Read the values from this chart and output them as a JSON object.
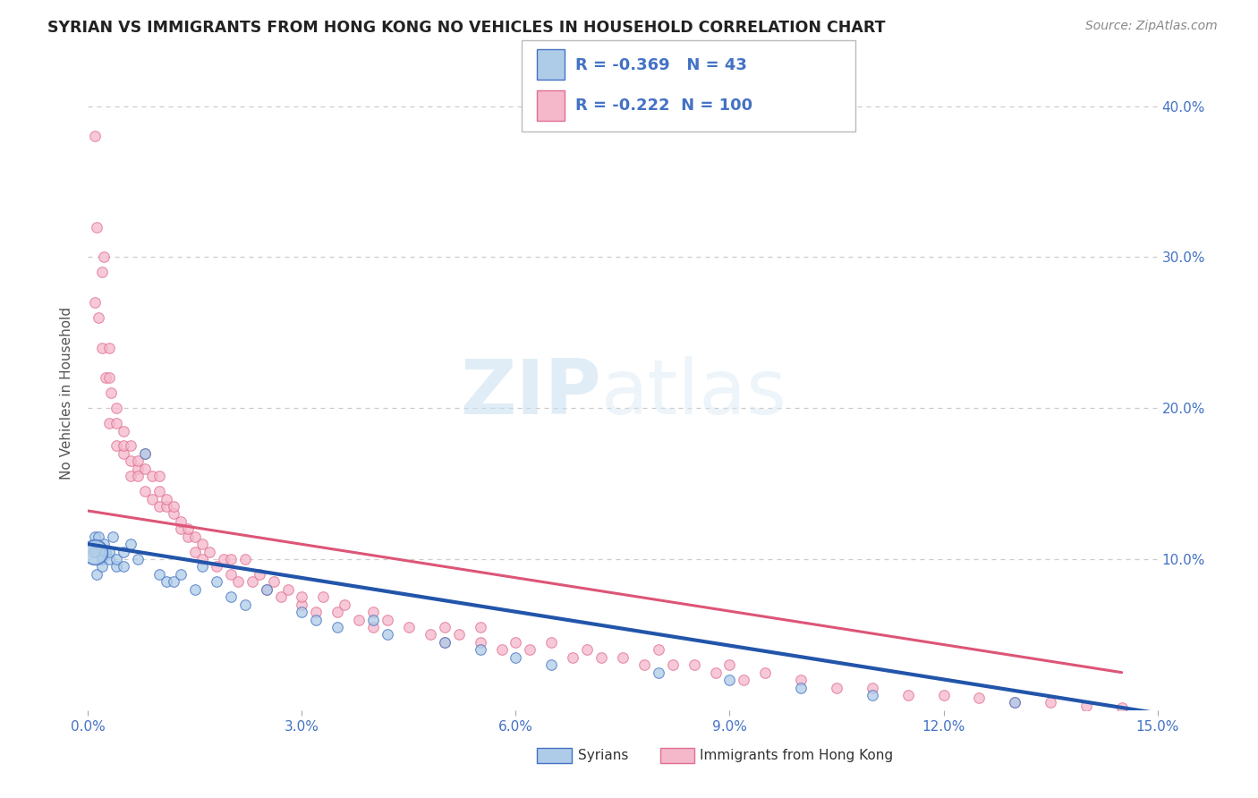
{
  "title": "SYRIAN VS IMMIGRANTS FROM HONG KONG NO VEHICLES IN HOUSEHOLD CORRELATION CHART",
  "source": "Source: ZipAtlas.com",
  "ylabel_label": "No Vehicles in Household",
  "watermark_zip": "ZIP",
  "watermark_atlas": "atlas",
  "legend_entries": [
    {
      "label": "Syrians",
      "R": -0.369,
      "N": 43,
      "color": "#aecce8",
      "edge_color": "#4472c4",
      "line_color": "#2255aa"
    },
    {
      "label": "Immigrants from Hong Kong",
      "R": -0.222,
      "N": 100,
      "color": "#f5b8cb",
      "edge_color": "#e07090",
      "line_color": "#dd5577"
    }
  ],
  "syrians_x": [
    0.0008,
    0.001,
    0.0012,
    0.0015,
    0.002,
    0.002,
    0.0022,
    0.0025,
    0.003,
    0.003,
    0.0035,
    0.004,
    0.004,
    0.005,
    0.005,
    0.006,
    0.007,
    0.008,
    0.01,
    0.011,
    0.012,
    0.013,
    0.015,
    0.016,
    0.018,
    0.02,
    0.022,
    0.025,
    0.03,
    0.032,
    0.035,
    0.04,
    0.042,
    0.05,
    0.055,
    0.06,
    0.065,
    0.08,
    0.09,
    0.1,
    0.11,
    0.13,
    0.14
  ],
  "syrians_y": [
    0.105,
    0.115,
    0.09,
    0.115,
    0.1,
    0.095,
    0.11,
    0.105,
    0.1,
    0.105,
    0.115,
    0.095,
    0.1,
    0.105,
    0.095,
    0.11,
    0.1,
    0.17,
    0.09,
    0.085,
    0.085,
    0.09,
    0.08,
    0.095,
    0.085,
    0.075,
    0.07,
    0.08,
    0.065,
    0.06,
    0.055,
    0.06,
    0.05,
    0.045,
    0.04,
    0.035,
    0.03,
    0.025,
    0.02,
    0.015,
    0.01,
    0.005,
    0.002
  ],
  "hk_x": [
    0.001,
    0.001,
    0.0012,
    0.0015,
    0.002,
    0.002,
    0.0022,
    0.0025,
    0.003,
    0.003,
    0.003,
    0.0032,
    0.004,
    0.004,
    0.004,
    0.005,
    0.005,
    0.005,
    0.006,
    0.006,
    0.006,
    0.007,
    0.007,
    0.007,
    0.008,
    0.008,
    0.008,
    0.009,
    0.009,
    0.01,
    0.01,
    0.01,
    0.011,
    0.011,
    0.012,
    0.012,
    0.013,
    0.013,
    0.014,
    0.014,
    0.015,
    0.015,
    0.016,
    0.016,
    0.017,
    0.018,
    0.019,
    0.02,
    0.02,
    0.021,
    0.022,
    0.023,
    0.024,
    0.025,
    0.026,
    0.027,
    0.028,
    0.03,
    0.03,
    0.032,
    0.033,
    0.035,
    0.036,
    0.038,
    0.04,
    0.04,
    0.042,
    0.045,
    0.048,
    0.05,
    0.05,
    0.052,
    0.055,
    0.055,
    0.058,
    0.06,
    0.062,
    0.065,
    0.068,
    0.07,
    0.072,
    0.075,
    0.078,
    0.08,
    0.082,
    0.085,
    0.088,
    0.09,
    0.092,
    0.095,
    0.1,
    0.105,
    0.11,
    0.115,
    0.12,
    0.125,
    0.13,
    0.135,
    0.14,
    0.145
  ],
  "hk_y": [
    0.38,
    0.27,
    0.32,
    0.26,
    0.29,
    0.24,
    0.3,
    0.22,
    0.22,
    0.24,
    0.19,
    0.21,
    0.175,
    0.19,
    0.2,
    0.17,
    0.175,
    0.185,
    0.155,
    0.165,
    0.175,
    0.16,
    0.155,
    0.165,
    0.145,
    0.16,
    0.17,
    0.14,
    0.155,
    0.135,
    0.145,
    0.155,
    0.135,
    0.14,
    0.13,
    0.135,
    0.12,
    0.125,
    0.115,
    0.12,
    0.115,
    0.105,
    0.11,
    0.1,
    0.105,
    0.095,
    0.1,
    0.09,
    0.1,
    0.085,
    0.1,
    0.085,
    0.09,
    0.08,
    0.085,
    0.075,
    0.08,
    0.07,
    0.075,
    0.065,
    0.075,
    0.065,
    0.07,
    0.06,
    0.065,
    0.055,
    0.06,
    0.055,
    0.05,
    0.055,
    0.045,
    0.05,
    0.045,
    0.055,
    0.04,
    0.045,
    0.04,
    0.045,
    0.035,
    0.04,
    0.035,
    0.035,
    0.03,
    0.04,
    0.03,
    0.03,
    0.025,
    0.03,
    0.02,
    0.025,
    0.02,
    0.015,
    0.015,
    0.01,
    0.01,
    0.008,
    0.005,
    0.005,
    0.003,
    0.002
  ],
  "xlim": [
    0.0,
    0.15
  ],
  "ylim": [
    0.0,
    0.42
  ],
  "x_ticks": [
    0.0,
    0.03,
    0.06,
    0.09,
    0.12,
    0.15
  ],
  "x_tick_labels": [
    "0.0%",
    "3.0%",
    "6.0%",
    "9.0%",
    "12.0%",
    "15.0%"
  ],
  "y_ticks": [
    0.1,
    0.2,
    0.3,
    0.4
  ],
  "y_tick_labels": [
    "10.0%",
    "20.0%",
    "30.0%",
    "40.0%"
  ],
  "bg_color": "#ffffff",
  "grid_color": "#cccccc",
  "title_color": "#222222",
  "axis_label_color": "#4472c4",
  "scatter_alpha": 0.75,
  "scatter_size": 70,
  "big_syrian_size": 400
}
